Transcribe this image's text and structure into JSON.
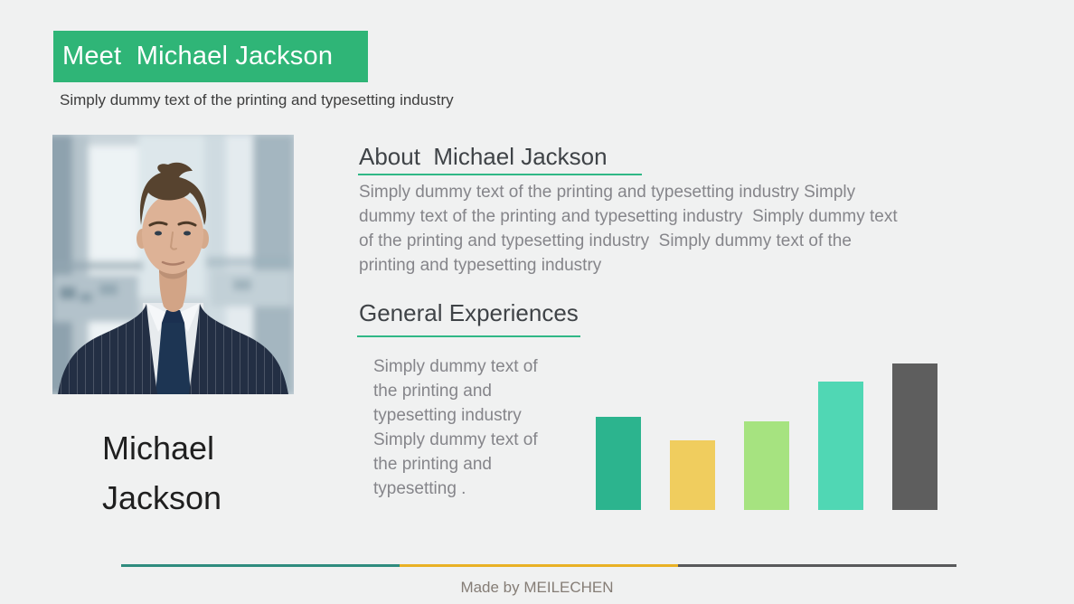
{
  "slide": {
    "title": "Meet  Michael Jackson",
    "subtitle": "Simply dummy text of the printing and typesetting industry",
    "profile": {
      "name": "Michael\nJackson",
      "photo_description": "businessman portrait, navy pinstripe suit, white shirt, navy tie, blurred office background"
    },
    "about": {
      "heading": "About  Michael Jackson",
      "body": "Simply dummy text of the printing and typesetting industry Simply\ndummy text of the printing and typesetting industry  Simply dummy text\nof the printing and typesetting industry  Simply dummy text of the\nprinting and typesetting industry"
    },
    "experiences": {
      "heading": "General Experiences",
      "body": "Simply dummy text of\nthe printing and\ntypesetting industry\nSimply dummy text of\nthe printing and\ntypesetting ."
    },
    "footer": {
      "credit": "Made by MEILECHEN"
    },
    "colors": {
      "banner_green": "#2fb577",
      "heading_underline": "#30b886",
      "footer_teal": "#2f8c7e",
      "footer_yellow": "#e9b125",
      "footer_gray": "#58595b"
    }
  },
  "chart_data": {
    "type": "bar",
    "categories": [
      "bar-1",
      "bar-2",
      "bar-3",
      "bar-4",
      "bar-5"
    ],
    "values": [
      103,
      77,
      98,
      142,
      162
    ],
    "value_unit": "relative bar heights in px (chart shows no axes, ticks or data labels)",
    "colors": [
      "#2cb48e",
      "#f0cd5e",
      "#a6e380",
      "#50d7b4",
      "#5e5e5e"
    ],
    "title": "",
    "xlabel": "",
    "ylabel": "",
    "layout": {
      "axes": false,
      "gridlines": false,
      "legend": false,
      "bars_bottom_aligned": true
    }
  }
}
